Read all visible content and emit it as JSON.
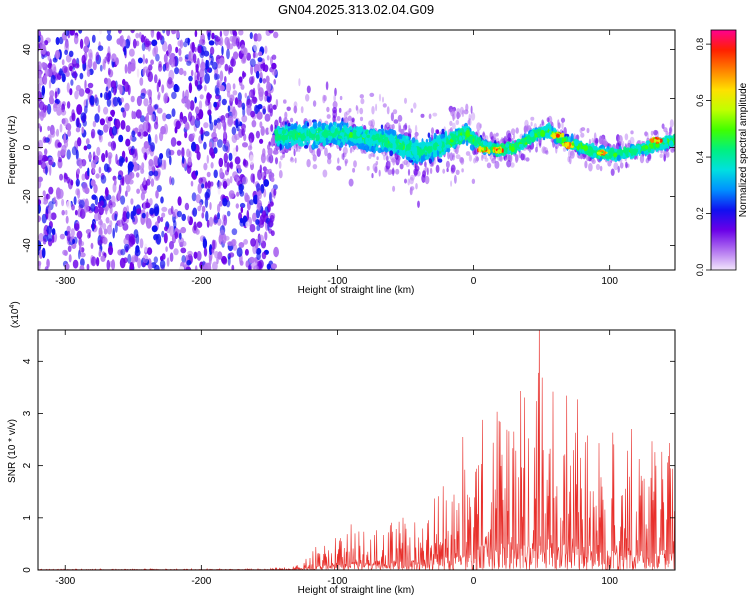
{
  "title": "GN04.2025.313.02.04.G09",
  "chart_data": [
    {
      "type": "heatmap",
      "xlabel": "Height of straight line (km)",
      "ylabel": "Frequency (Hz)",
      "xlim": [
        -320,
        148
      ],
      "ylim": [
        -50,
        48
      ],
      "xticks": [
        -300,
        -200,
        -100,
        0,
        100
      ],
      "yticks": [
        -40,
        -20,
        0,
        20,
        40
      ],
      "colorbar": {
        "label": "Normalized spectral amplitude",
        "range": [
          0,
          0.85
        ],
        "ticks": [
          "0.0",
          "0.2",
          "0.4",
          "0.6",
          "0.8"
        ],
        "tick_values": [
          0,
          0.2,
          0.4,
          0.6,
          0.8
        ],
        "colors": [
          "#f3e6fb",
          "#b070f0",
          "#6a00e8",
          "#1010f0",
          "#0090ff",
          "#00e0e0",
          "#00f080",
          "#40ff00",
          "#c0ff00",
          "#ffe000",
          "#ff8000",
          "#ff2000",
          "#ff0090"
        ]
      },
      "band_center": [
        [
          -145,
          5
        ],
        [
          -120,
          5
        ],
        [
          -100,
          6
        ],
        [
          -80,
          4
        ],
        [
          -60,
          2
        ],
        [
          -40,
          -2
        ],
        [
          -20,
          2
        ],
        [
          -5,
          6
        ],
        [
          0,
          3
        ],
        [
          10,
          0
        ],
        [
          20,
          -1
        ],
        [
          30,
          0
        ],
        [
          45,
          5
        ],
        [
          55,
          7
        ],
        [
          65,
          3
        ],
        [
          75,
          1
        ],
        [
          90,
          -2
        ],
        [
          105,
          -3
        ],
        [
          120,
          -1
        ],
        [
          135,
          1
        ],
        [
          148,
          3
        ]
      ],
      "noise_region_x": [
        -320,
        -145
      ],
      "peaks": [
        [
          8,
          -1
        ],
        [
          18,
          -1
        ],
        [
          62,
          5
        ],
        [
          70,
          1
        ],
        [
          94,
          -2
        ],
        [
          134,
          3
        ]
      ]
    },
    {
      "type": "area",
      "xlabel": "Height of straight line (km)",
      "ylabel": "SNR (10 * v/v)",
      "scale_label": "(x10^4)",
      "xlim": [
        -320,
        148
      ],
      "ylim": [
        0,
        4.6
      ],
      "xticks": [
        -300,
        -200,
        -100,
        0,
        100
      ],
      "yticks": [
        0,
        1,
        2,
        3,
        4
      ],
      "color": "#e8302c",
      "envelope": [
        [
          -320,
          0.02
        ],
        [
          -150,
          0.03
        ],
        [
          -130,
          0.12
        ],
        [
          -110,
          0.6
        ],
        [
          -90,
          0.8
        ],
        [
          -70,
          0.9
        ],
        [
          -50,
          1.2
        ],
        [
          -30,
          1.6
        ],
        [
          -10,
          2.2
        ],
        [
          0,
          3.2
        ],
        [
          20,
          3.4
        ],
        [
          40,
          3.9
        ],
        [
          55,
          4.6
        ],
        [
          65,
          3.8
        ],
        [
          80,
          3.6
        ],
        [
          90,
          2.8
        ],
        [
          110,
          2.7
        ],
        [
          120,
          3.0
        ],
        [
          135,
          2.6
        ],
        [
          148,
          2.5
        ]
      ]
    }
  ]
}
